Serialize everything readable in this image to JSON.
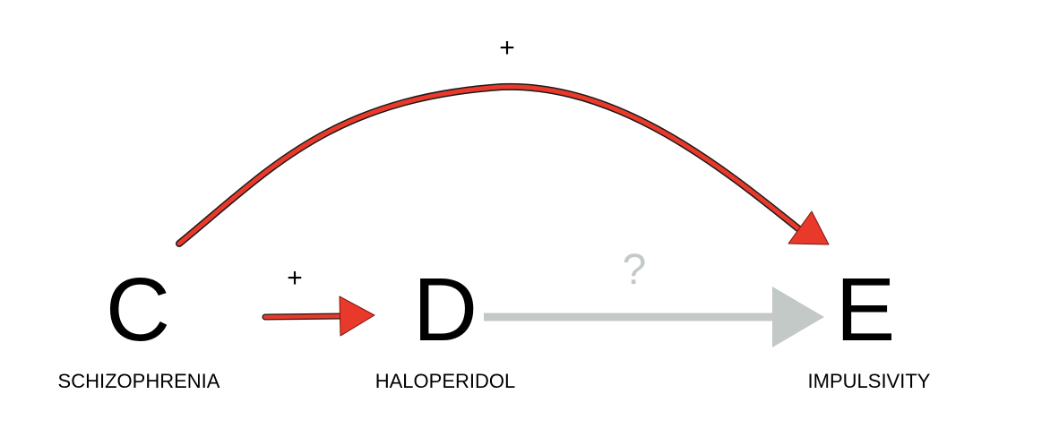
{
  "nodes": {
    "c": {
      "letter": "C",
      "label": "SCHIZOPHRENIA"
    },
    "d": {
      "letter": "D",
      "label": "HALOPERIDOL"
    },
    "e": {
      "letter": "E",
      "label": "IMPULSIVITY"
    }
  },
  "edges": {
    "c_to_e": {
      "sign": "+",
      "color": "#e8392a"
    },
    "c_to_d": {
      "sign": "+",
      "color": "#e8392a"
    },
    "d_to_e": {
      "sign": "?",
      "color": "#c3c9c7"
    }
  }
}
